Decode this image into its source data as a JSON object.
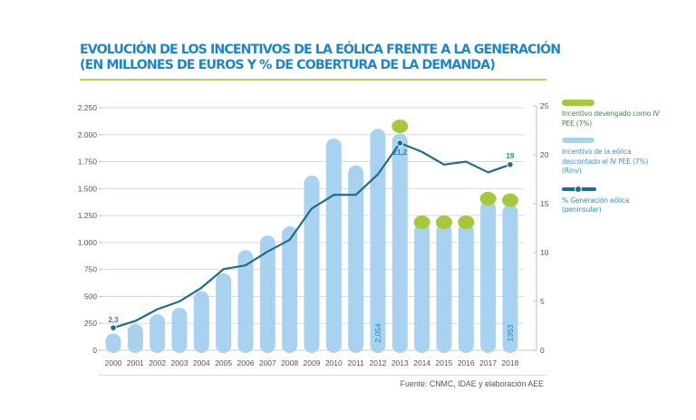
{
  "title": {
    "line1": "EVOLUCIÓN DE LOS INCENTIVOS DE LA EÓLICA FRENTE A LA GENERACIÓN",
    "line2": "(EN MILLONES DE EUROS Y % DE COBERTURA DE LA DEMANDA)"
  },
  "legend": {
    "devengado": "Incentivo devengado como IV PEE (7%)",
    "rinv": "Incentivo de la eólica descontado el IV PEE (7%) (Rinv)",
    "generacion": "% Generación eólica (peninsular)"
  },
  "source": "Fuente: CNMC, IDAE y elaboración AEE",
  "colors": {
    "bar_rinv": "#a9d1f0",
    "bar_devengado": "#a6c83c",
    "line_generacion": "#1b6e8c",
    "title": "#1e86c6",
    "grid": "#d9d9d9"
  },
  "chart_data": {
    "type": "bar",
    "title": "EVOLUCIÓN DE LOS INCENTIVOS DE LA EÓLICA FRENTE A LA GENERACIÓN (EN MILLONES DE EUROS Y % DE COBERTURA DE LA DEMANDA)",
    "xlabel": "",
    "ylabel": "Millones de euros",
    "y2label": "% Generación eólica",
    "categories": [
      "2000",
      "2001",
      "2002",
      "2003",
      "2004",
      "2005",
      "2006",
      "2007",
      "2008",
      "2009",
      "2010",
      "2011",
      "2012",
      "2013",
      "2014",
      "2015",
      "2016",
      "2017",
      "2018"
    ],
    "ylim": [
      0,
      2250
    ],
    "yticks": [
      0,
      250,
      500,
      750,
      1000,
      1250,
      1500,
      1750,
      2000,
      2250
    ],
    "ytick_labels": [
      "0",
      "250",
      "500",
      "750",
      "1.000",
      "1.250",
      "1.500",
      "1.750",
      "2.000",
      "2.250"
    ],
    "y2lim": [
      0,
      25
    ],
    "y2ticks": [
      0,
      5,
      10,
      15,
      20,
      25
    ],
    "grid": true,
    "legend_position": "right",
    "series": [
      {
        "name": "Incentivo de la eólica descontado el IV PEE (7%) (Rinv)",
        "type": "bar",
        "axis": "left",
        "values": [
          155,
          245,
          335,
          395,
          550,
          715,
          930,
          1065,
          1150,
          1620,
          1965,
          1715,
          2054,
          2010,
          1180,
          1180,
          1180,
          1390,
          1353
        ]
      },
      {
        "name": "Incentivo devengado como IV PEE (7%)",
        "type": "bar-cap",
        "axis": "left",
        "values": [
          null,
          null,
          null,
          null,
          null,
          null,
          null,
          null,
          null,
          null,
          null,
          null,
          null,
          2140,
          1250,
          1250,
          1250,
          1470,
          1455
        ]
      },
      {
        "name": "% Generación eólica (peninsular)",
        "type": "line",
        "axis": "right",
        "values": [
          2.3,
          3.0,
          4.2,
          5.0,
          6.4,
          8.3,
          8.7,
          10.1,
          11.3,
          14.5,
          15.9,
          15.9,
          18.0,
          21.2,
          20.3,
          19.0,
          19.3,
          18.2,
          19.0
        ]
      }
    ],
    "annotations": [
      {
        "category": "2000",
        "series": "% Generación eólica (peninsular)",
        "text": "2,3"
      },
      {
        "category": "2013",
        "series": "% Generación eólica (peninsular)",
        "text": "21,2"
      },
      {
        "category": "2018",
        "series": "% Generación eólica (peninsular)",
        "text": "19"
      },
      {
        "category": "2012",
        "series": "Incentivo de la eólica descontado el IV PEE (7%) (Rinv)",
        "text": "2,054"
      },
      {
        "category": "2018",
        "series": "Incentivo de la eólica descontado el IV PEE (7%) (Rinv)",
        "text": "1353"
      }
    ]
  }
}
